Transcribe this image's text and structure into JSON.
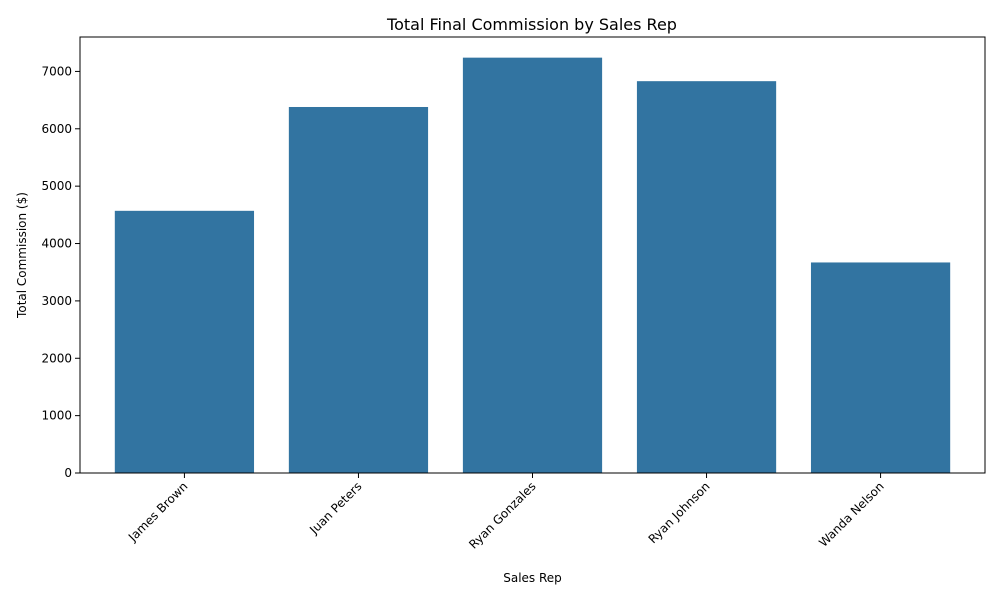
{
  "chart_data": {
    "type": "bar",
    "title": "Total Final Commission by Sales Rep",
    "xlabel": "Sales Rep",
    "ylabel": "Total Commission ($)",
    "categories": [
      "James Brown",
      "Juan Peters",
      "Ryan Gonzales",
      "Ryan Johnson",
      "Wanda Nelson"
    ],
    "values": [
      4570,
      6380,
      7240,
      6830,
      3670
    ],
    "ylim": [
      0,
      7600
    ],
    "yticks": [
      0,
      1000,
      2000,
      3000,
      4000,
      5000,
      6000,
      7000
    ],
    "grid": false,
    "bar_color": "#3274a1"
  }
}
